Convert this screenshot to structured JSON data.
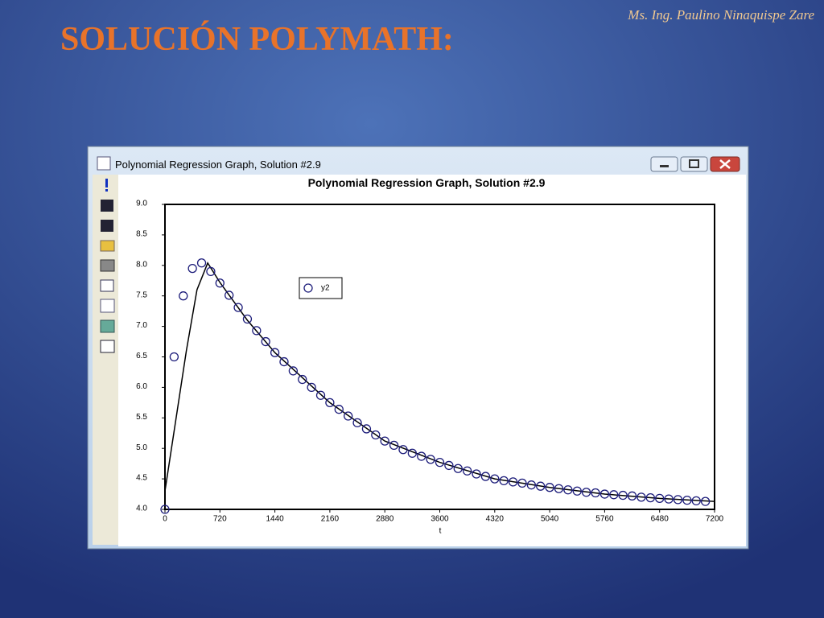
{
  "slide": {
    "author": "Ms. Ing. Paulino Ninaquispe Zare",
    "title": "SOLUCIÓN POLYMATH:"
  },
  "window": {
    "title": "Polynomial Regression Graph, Solution #2.9"
  },
  "chart_data": {
    "type": "scatter",
    "title": "Polynomial Regression Graph, Solution #2.9",
    "x_label": "t",
    "x": [
      0,
      120,
      240,
      360,
      480,
      600,
      720,
      840,
      960,
      1080,
      1200,
      1320,
      1440,
      1560,
      1680,
      1800,
      1920,
      2040,
      2160,
      2280,
      2400,
      2520,
      2640,
      2760,
      2880,
      3000,
      3120,
      3240,
      3360,
      3480,
      3600,
      3720,
      3840,
      3960,
      4080,
      4200,
      4320,
      4440,
      4560,
      4680,
      4800,
      4920,
      5040,
      5160,
      5280,
      5400,
      5520,
      5640,
      5760,
      5880,
      6000,
      6120,
      6240,
      6360,
      6480,
      6600,
      6720,
      6840,
      6960,
      7080
    ],
    "series": [
      {
        "name": "y2",
        "color": "#1c1c7a",
        "marker": "circle",
        "values": [
          4.0,
          6.5,
          7.5,
          7.95,
          8.04,
          7.9,
          7.71,
          7.51,
          7.31,
          7.12,
          6.93,
          6.75,
          6.57,
          6.42,
          6.27,
          6.13,
          6.0,
          5.87,
          5.75,
          5.64,
          5.53,
          5.42,
          5.32,
          5.22,
          5.12,
          5.05,
          4.98,
          4.92,
          4.87,
          4.82,
          4.77,
          4.72,
          4.67,
          4.63,
          4.58,
          4.54,
          4.5,
          4.47,
          4.45,
          4.43,
          4.4,
          4.38,
          4.36,
          4.34,
          4.32,
          4.3,
          4.28,
          4.27,
          4.25,
          4.24,
          4.23,
          4.22,
          4.2,
          4.19,
          4.18,
          4.17,
          4.16,
          4.15,
          4.14,
          4.13
        ]
      }
    ],
    "fit": {
      "color": "#000000",
      "x": [
        0,
        140,
        280,
        420,
        560,
        720,
        1080,
        1440,
        2160,
        2880,
        3600,
        4320,
        5040,
        5760,
        6480,
        7200
      ],
      "values": [
        4.3,
        5.45,
        6.6,
        7.6,
        8.04,
        7.72,
        7.1,
        6.57,
        5.75,
        5.12,
        4.77,
        4.5,
        4.36,
        4.25,
        4.18,
        4.13
      ]
    },
    "xlim": [
      0,
      7200
    ],
    "xticks": [
      0,
      720,
      1440,
      2160,
      2880,
      3600,
      4320,
      5040,
      5760,
      6480,
      7200
    ],
    "ylim": [
      4,
      9
    ],
    "yticks": [
      {
        "value": 4,
        "label": "4.0"
      },
      4.5,
      {
        "value": 5,
        "label": "5.0"
      },
      5.5,
      {
        "value": 6,
        "label": "6.0"
      },
      6.5,
      {
        "value": 7,
        "label": "7.0"
      },
      7.5,
      {
        "value": 8,
        "label": "8.0"
      },
      8.5,
      {
        "value": 9,
        "label": "9.0"
      }
    ]
  }
}
